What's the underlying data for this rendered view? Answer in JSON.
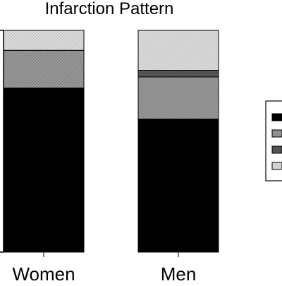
{
  "chart_data": {
    "type": "bar",
    "stacked": true,
    "title": "Infarction Pattern",
    "categories": [
      "Women",
      "Men"
    ],
    "ylim": [
      0,
      100
    ],
    "grid": false,
    "legend_position": "right",
    "series": [
      {
        "values": [
          74,
          60
        ],
        "color": "#000000",
        "pattern": "solid"
      },
      {
        "values": [
          17,
          19
        ],
        "color": "#8f8f8f",
        "pattern": "hatch-dense"
      },
      {
        "values": [
          0,
          3
        ],
        "color": "#555555",
        "pattern": "hatch-dark"
      },
      {
        "values": [
          9,
          18
        ],
        "color": "#d0d0d0",
        "pattern": "hatch-light"
      }
    ]
  }
}
